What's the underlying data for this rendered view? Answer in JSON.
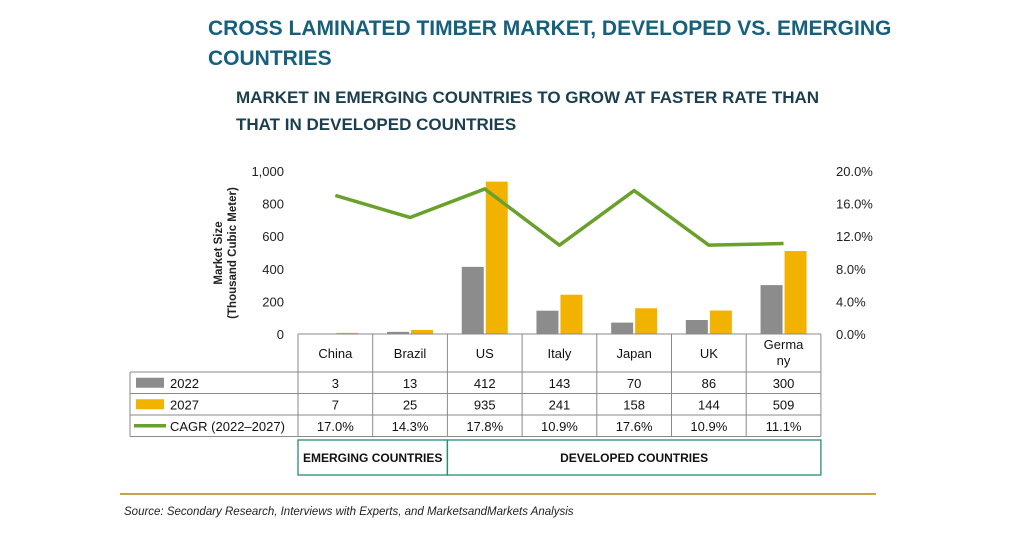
{
  "title": "CROSS LAMINATED TIMBER MARKET, DEVELOPED VS. EMERGING COUNTRIES",
  "subtitle": "MARKET IN EMERGING COUNTRIES TO GROW AT FASTER RATE THAN THAT IN DEVELOPED COUNTRIES",
  "source": "Source: Secondary Research, Interviews with Experts, and MarketsandMarkets Analysis",
  "colors": {
    "2022": "#8c8c8c",
    "2027": "#f2b200",
    "cagr": "#6aa12c",
    "title": "#17607c",
    "group_border": "#2a8c75",
    "rule": "#c9a347"
  },
  "chart_data": {
    "type": "bar",
    "categories": [
      "China",
      "Brazil",
      "US",
      "Italy",
      "Japan",
      "UK",
      "Germa ny"
    ],
    "series": [
      {
        "name": "2022",
        "kind": "bar",
        "values": [
          3,
          13,
          412,
          143,
          70,
          86,
          300
        ]
      },
      {
        "name": "2027",
        "kind": "bar",
        "values": [
          7,
          25,
          935,
          241,
          158,
          144,
          509
        ]
      },
      {
        "name": "CAGR (2022–2027)",
        "kind": "line",
        "axis": "right",
        "values": [
          17.0,
          14.3,
          17.8,
          10.9,
          17.6,
          10.9,
          11.1
        ]
      }
    ],
    "table_values": {
      "2022": [
        "3",
        "13",
        "412",
        "143",
        "70",
        "86",
        "300"
      ],
      "2027": [
        "7",
        "25",
        "935",
        "241",
        "158",
        "144",
        "509"
      ],
      "CAGR (2022–2027)": [
        "17.0%",
        "14.3%",
        "17.8%",
        "10.9%",
        "17.6%",
        "10.9%",
        "11.1%"
      ]
    },
    "ylabel": [
      "Market Size",
      "(Thousand Cubic Meter)"
    ],
    "ylim": [
      0,
      1000
    ],
    "yticks": [
      "0",
      "200",
      "400",
      "600",
      "800",
      "1,000"
    ],
    "y2lim": [
      0,
      20
    ],
    "y2ticks": [
      "0.0%",
      "4.0%",
      "8.0%",
      "12.0%",
      "16.0%",
      "20.0%"
    ],
    "groups": [
      {
        "label": "EMERGING COUNTRIES",
        "count": 2
      },
      {
        "label": "DEVELOPED COUNTRIES",
        "count": 5
      }
    ],
    "grid": false,
    "legend": "table rows"
  }
}
